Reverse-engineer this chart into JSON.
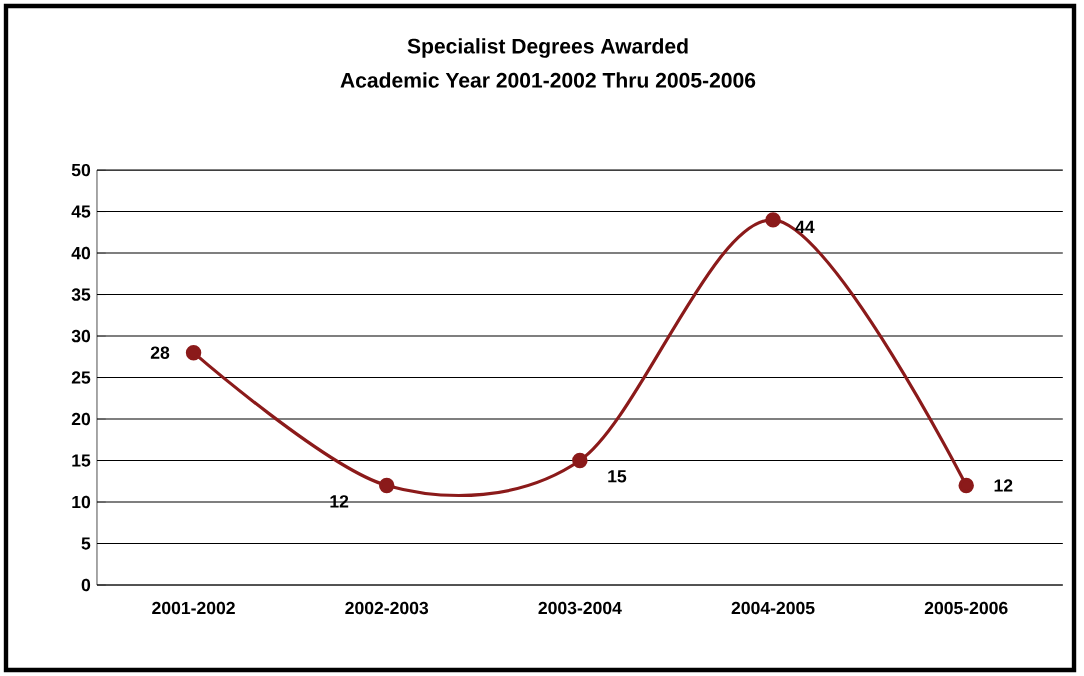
{
  "chart_data": {
    "type": "line",
    "title": "Specialist Degrees Awarded",
    "subtitle": "Academic Year 2001-2002 Thru 2005-2006",
    "categories": [
      "2001-2002",
      "2002-2003",
      "2003-2004",
      "2004-2005",
      "2005-2006"
    ],
    "values": [
      28,
      12,
      15,
      44,
      12
    ],
    "color": "#8b1a1a",
    "ylim": [
      0,
      50
    ],
    "yticks": [
      0,
      5,
      10,
      15,
      20,
      25,
      30,
      35,
      40,
      45,
      50
    ],
    "grid": "y",
    "marker": "circle",
    "line_style": "solid",
    "data_labels": true
  }
}
